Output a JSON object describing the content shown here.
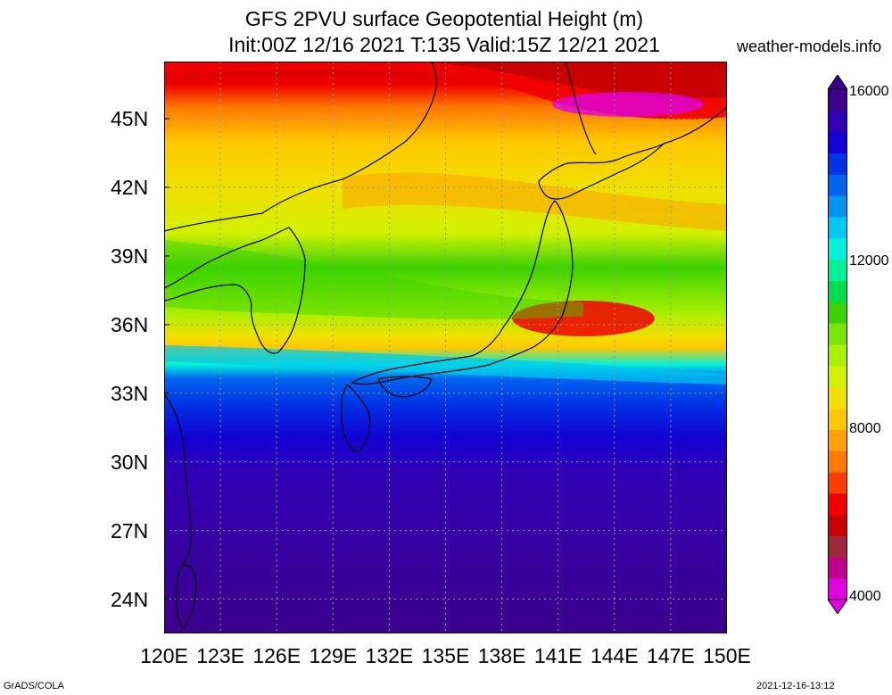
{
  "title": {
    "line1": "GFS 2PVU surface Geopotential Height (m)",
    "line2": "Init:00Z 12/16 2021 T:135 Valid:15Z 12/21 2021"
  },
  "site": "weather-models.info",
  "map": {
    "lat_labels": [
      "45N",
      "42N",
      "39N",
      "36N",
      "33N",
      "30N",
      "27N",
      "24N"
    ],
    "lon_labels": [
      "120E",
      "123E",
      "126E",
      "129E",
      "132E",
      "135E",
      "138E",
      "141E",
      "144E",
      "147E",
      "150E"
    ],
    "lat_range": [
      22.5,
      47.5
    ],
    "lon_range": [
      120,
      150
    ]
  },
  "colorbar": {
    "labels": [
      "16000",
      "12000",
      "8000",
      "4000"
    ],
    "colors": [
      "#e000e0",
      "#c0008c",
      "#a0283c",
      "#c80000",
      "#f00000",
      "#ff3c00",
      "#ff7800",
      "#ffa000",
      "#ffc800",
      "#f0e000",
      "#d2f000",
      "#aaf000",
      "#78e600",
      "#3cd200",
      "#00dc50",
      "#00f096",
      "#00f0dc",
      "#00c8f0",
      "#0096f0",
      "#0064f0",
      "#0032e6",
      "#1400d2",
      "#3200b4",
      "#3c008c"
    ]
  },
  "footer": {
    "left": "GrADS/COLA",
    "right": "2021-12-16-13:12"
  }
}
